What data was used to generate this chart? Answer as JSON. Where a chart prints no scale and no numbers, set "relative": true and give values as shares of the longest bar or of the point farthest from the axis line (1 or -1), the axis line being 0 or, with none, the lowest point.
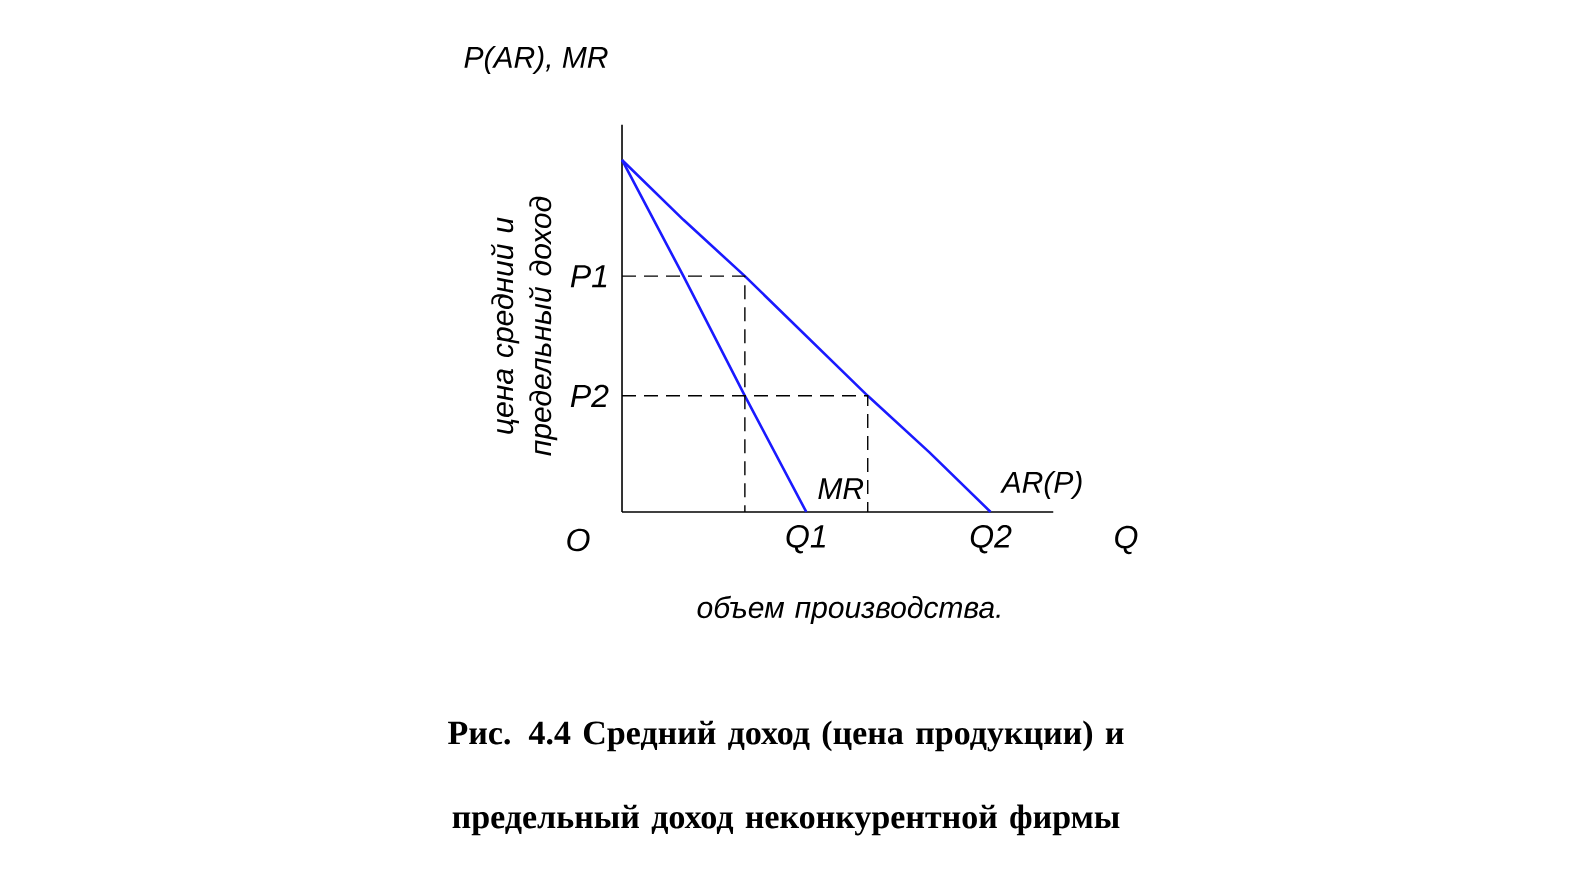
{
  "chart_data": {
    "type": "line",
    "relative": true,
    "title": "Рис. 4.4 Средний доход (цена продукции) и предельный доход неконкурентной фирмы",
    "xlabel": "Q",
    "ylabel": "P(AR), MR",
    "categories": [
      null,
      null,
      null,
      "Q1",
      null,
      null,
      "Q2"
    ],
    "annotations": [
      "цена средний и предельный доход",
      "объем производства.",
      "O",
      "P1",
      "P2"
    ],
    "series": [
      {
        "name": "AR(P)",
        "color": "#1a1aff",
        "values": [
          1,
          0.83,
          0.67,
          0.5,
          0.33,
          0.17,
          0
        ]
      },
      {
        "name": "MR",
        "color": "#1a1aff",
        "values": [
          1,
          0.67,
          0.33,
          0,
          null,
          null,
          null
        ]
      },
      {
        "type": "step",
        "color": "#000000",
        "line_style": "dashed",
        "values": [
          0.67,
          0.67,
          0,
          null,
          null,
          null,
          null
        ]
      },
      {
        "type": "step",
        "color": "#000000",
        "line_style": "dashed",
        "values": [
          0.33,
          0.33,
          0.33,
          0.33,
          0,
          null,
          null
        ]
      }
    ]
  }
}
